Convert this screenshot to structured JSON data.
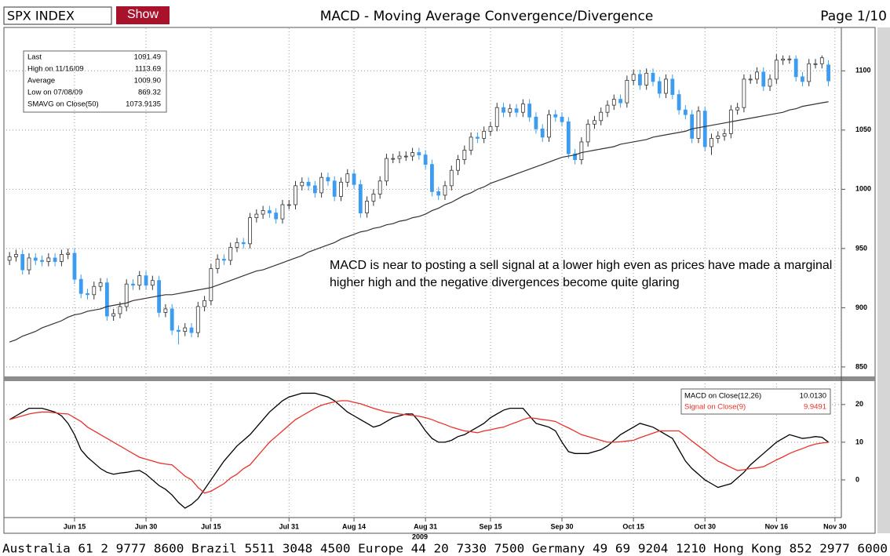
{
  "header": {
    "security": "SPX INDEX",
    "button": "Show",
    "title": "MACD - Moving Average Convergence/Divergence",
    "page": "Page 1/10"
  },
  "stats": [
    {
      "label": "Last",
      "value": "1091.49"
    },
    {
      "label": "High on  11/16/09",
      "value": "1113.69"
    },
    {
      "label": "Average",
      "value": "1009.90"
    },
    {
      "label": "Low on  07/08/09",
      "value": "869.32"
    },
    {
      "value": "1073.9135"
    }
  ],
  "footer": "Australia 61 2 9777 8600 Brazil 5511 3048 4500 Europe 44 20 7330 7500 Germany 49 69 9204 1210 Hong Kong 852 2977 6000",
  "chart_data": [
    {
      "type": "candlestick",
      "up_color": "#ffffff",
      "down_color": "#3d9cf0",
      "annotation": "MACD is near to posting a sell signal at a lower high even as prices have made a marginal higher high and the negative divergences become quite glaring",
      "open": [
        940,
        943,
        945,
        932,
        942,
        940,
        939,
        942,
        939,
        945,
        946,
        924,
        912,
        911,
        918,
        921,
        893,
        895,
        901,
        920,
        919,
        927,
        919,
        923,
        896,
        899,
        881,
        880,
        883,
        879,
        901,
        906,
        933,
        941,
        940,
        951,
        955,
        954,
        976,
        979,
        982,
        980,
        975,
        987,
        987,
        1003,
        1006,
        1003,
        997,
        1010,
        1007,
        994,
        1006,
        1013,
        1004,
        980,
        990,
        996,
        1007,
        1026,
        1026,
        1028,
        1028,
        1031,
        1029,
        1021,
        998,
        995,
        1003,
        1016,
        1025,
        1033,
        1044,
        1043,
        1049,
        1053,
        1069,
        1065,
        1068,
        1065,
        1072,
        1061,
        1051,
        1044,
        1063,
        1061,
        1057,
        1030,
        1025,
        1040,
        1055,
        1058,
        1065,
        1071,
        1076,
        1073,
        1092,
        1097,
        1088,
        1098,
        1091,
        1081,
        1093,
        1080,
        1067,
        1063,
        1043,
        1066,
        1036,
        1043,
        1045,
        1047,
        1067,
        1069,
        1093,
        1093,
        1099,
        1087,
        1093,
        1109,
        1110,
        1110,
        1095,
        1091,
        1106,
        1106,
        1105,
        null
      ],
      "high": [
        947,
        949,
        949,
        946,
        946,
        944,
        946,
        946,
        949,
        950,
        950,
        928,
        916,
        922,
        925,
        925,
        899,
        905,
        924,
        924,
        931,
        931,
        927,
        927,
        903,
        903,
        885,
        887,
        887,
        905,
        910,
        937,
        945,
        945,
        955,
        959,
        959,
        980,
        983,
        986,
        986,
        984,
        991,
        991,
        1007,
        1010,
        1010,
        1007,
        1014,
        1014,
        1011,
        1010,
        1017,
        1017,
        1008,
        994,
        1000,
        1011,
        1030,
        1030,
        1032,
        1032,
        1035,
        1035,
        1033,
        1025,
        1002,
        1007,
        1020,
        1029,
        1037,
        1048,
        1048,
        1053,
        1057,
        1073,
        1073,
        1072,
        1072,
        1076,
        1076,
        1065,
        1055,
        1067,
        1067,
        1065,
        1061,
        1034,
        1044,
        1059,
        1062,
        1069,
        1075,
        1080,
        1080,
        1096,
        1101,
        1101,
        1102,
        1102,
        1095,
        1097,
        1097,
        1084,
        1071,
        1067,
        1070,
        1070,
        1047,
        1049,
        1051,
        1071,
        1073,
        1097,
        1097,
        1103,
        1103,
        1097,
        1114,
        1113,
        1113,
        1113,
        1099,
        1110,
        1110,
        1113,
        1109,
        null
      ],
      "low": [
        936,
        939,
        928,
        928,
        936,
        935,
        935,
        935,
        935,
        941,
        920,
        908,
        907,
        907,
        914,
        889,
        889,
        891,
        897,
        915,
        915,
        915,
        915,
        892,
        892,
        877,
        869,
        876,
        875,
        875,
        897,
        902,
        929,
        936,
        936,
        947,
        950,
        950,
        972,
        975,
        976,
        971,
        971,
        983,
        983,
        999,
        999,
        993,
        993,
        1003,
        990,
        990,
        1002,
        1000,
        976,
        976,
        986,
        992,
        1003,
        1022,
        1022,
        1024,
        1024,
        1025,
        1017,
        994,
        991,
        991,
        999,
        1012,
        1021,
        1029,
        1039,
        1039,
        1045,
        1049,
        1061,
        1061,
        1061,
        1061,
        1057,
        1047,
        1040,
        1040,
        1057,
        1053,
        1026,
        1021,
        1021,
        1036,
        1051,
        1054,
        1061,
        1067,
        1069,
        1069,
        1088,
        1084,
        1084,
        1087,
        1077,
        1077,
        1076,
        1063,
        1059,
        1039,
        1039,
        1032,
        1029,
        1039,
        1041,
        1043,
        1063,
        1065,
        1089,
        1089,
        1083,
        1083,
        1089,
        1105,
        1106,
        1091,
        1087,
        1087,
        1102,
        1102,
        1087,
        null
      ],
      "close": [
        943,
        945,
        932,
        942,
        940,
        939,
        942,
        939,
        945,
        946,
        924,
        912,
        911,
        918,
        921,
        893,
        895,
        901,
        920,
        919,
        927,
        919,
        923,
        896,
        899,
        881,
        880,
        883,
        879,
        901,
        906,
        933,
        941,
        940,
        951,
        955,
        954,
        976,
        979,
        982,
        980,
        975,
        987,
        987,
        1003,
        1006,
        1003,
        997,
        1010,
        1007,
        994,
        1006,
        1013,
        1004,
        980,
        990,
        996,
        1007,
        1026,
        1026,
        1028,
        1028,
        1031,
        1029,
        1021,
        998,
        995,
        1003,
        1016,
        1025,
        1033,
        1044,
        1043,
        1049,
        1053,
        1069,
        1065,
        1068,
        1065,
        1072,
        1061,
        1051,
        1044,
        1063,
        1061,
        1057,
        1030,
        1025,
        1040,
        1055,
        1058,
        1065,
        1071,
        1076,
        1073,
        1092,
        1097,
        1088,
        1098,
        1091,
        1081,
        1093,
        1080,
        1067,
        1063,
        1043,
        1066,
        1036,
        1043,
        1045,
        1047,
        1067,
        1069,
        1093,
        1093,
        1099,
        1087,
        1093,
        1109,
        1110,
        1110,
        1095,
        1091,
        1106,
        1106,
        1111,
        1091.49,
        null
      ],
      "series": [
        {
          "name": "SMAVG on Close(50)",
          "color": "#333333",
          "values": [
            871,
            873,
            876,
            878,
            880,
            883,
            885,
            887,
            889,
            892,
            894,
            895,
            897,
            898,
            899,
            901,
            902,
            903,
            904,
            906,
            907,
            908,
            909,
            910,
            911,
            911,
            912,
            913,
            914,
            915,
            916,
            917,
            919,
            921,
            923,
            925,
            927,
            929,
            931,
            932,
            934,
            936,
            938,
            940,
            942,
            944,
            947,
            949,
            951,
            953,
            955,
            958,
            960,
            962,
            964,
            965,
            967,
            968,
            970,
            971,
            973,
            974,
            976,
            977,
            979,
            982,
            984,
            987,
            989,
            992,
            995,
            997,
            1000,
            1002,
            1005,
            1007,
            1009,
            1011,
            1013,
            1015,
            1017,
            1019,
            1021,
            1023,
            1025,
            1027,
            1028,
            1029,
            1031,
            1032,
            1033,
            1034,
            1035,
            1036,
            1038,
            1039,
            1040,
            1041,
            1042,
            1044,
            1045,
            1046,
            1047,
            1048,
            1049,
            1051,
            1052,
            1053,
            1054,
            1055,
            1056,
            1057,
            1058,
            1059,
            1060,
            1061,
            1062,
            1063,
            1064,
            1065,
            1067,
            1068,
            1070,
            1071,
            1072,
            1073,
            1073.91,
            null
          ]
        }
      ],
      "ylim": [
        842,
        1132
      ],
      "yticks": [
        850,
        900,
        950,
        1000,
        1050,
        1100
      ],
      "grid": true
    },
    {
      "type": "line",
      "categories": [
        null,
        null,
        null,
        null,
        null,
        null,
        null,
        null,
        null,
        null,
        "Jun 15",
        null,
        null,
        null,
        null,
        null,
        null,
        null,
        null,
        null,
        null,
        "Jun 30",
        null,
        null,
        null,
        null,
        null,
        null,
        null,
        null,
        null,
        "Jul 15",
        null,
        null,
        null,
        null,
        null,
        null,
        null,
        null,
        null,
        null,
        null,
        "Jul 31",
        null,
        null,
        null,
        null,
        null,
        null,
        null,
        null,
        null,
        "Aug 14",
        null,
        null,
        null,
        null,
        null,
        null,
        null,
        null,
        null,
        null,
        "Aug 31",
        null,
        null,
        null,
        null,
        null,
        null,
        null,
        null,
        null,
        "Sep 15",
        null,
        null,
        null,
        null,
        null,
        null,
        null,
        null,
        null,
        null,
        "Sep 30",
        null,
        null,
        null,
        null,
        null,
        null,
        null,
        null,
        null,
        null,
        "Oct 15",
        null,
        null,
        null,
        null,
        null,
        null,
        null,
        null,
        null,
        null,
        "Oct 30",
        null,
        null,
        null,
        null,
        null,
        null,
        null,
        null,
        null,
        null,
        "Nov 16",
        null,
        null,
        null,
        null,
        null,
        null,
        null,
        null,
        "Nov 30"
      ],
      "xlabel": "2009",
      "series": [
        {
          "name": "MACD on Close(12,26)",
          "color": "#000000",
          "last_label": "10.0130",
          "values": [
            16,
            17,
            18,
            19,
            19,
            19,
            18.5,
            18,
            17,
            15,
            12,
            8,
            6,
            4.5,
            3,
            2,
            1.5,
            1.8,
            2,
            2.3,
            2.5,
            1.5,
            0,
            -1.5,
            -2.5,
            -4,
            -6,
            -7.5,
            -6.5,
            -5,
            -2.5,
            0,
            2.5,
            5,
            7,
            9,
            10.5,
            12,
            14,
            16,
            18,
            19.5,
            21,
            22,
            22.5,
            23,
            23,
            23,
            22.5,
            22,
            21,
            19.5,
            18,
            17,
            16,
            15,
            14,
            14.5,
            15.5,
            16.5,
            17,
            17.5,
            17.5,
            15.5,
            13,
            11,
            10,
            10,
            10.5,
            11.5,
            12,
            13,
            14,
            15,
            16.5,
            17.5,
            18.5,
            19,
            19,
            19,
            17,
            15,
            14.5,
            14,
            13,
            10,
            7.5,
            7,
            7,
            7,
            7.5,
            8,
            9,
            10.5,
            12,
            13,
            14,
            15,
            14.5,
            14,
            13,
            12,
            11,
            8,
            5,
            3,
            1.5,
            0,
            -1,
            -2,
            -1.5,
            -1,
            0.5,
            2,
            4,
            5.5,
            7,
            8.5,
            10,
            11,
            12,
            11.5,
            11,
            11.2,
            11.5,
            11.3,
            10.013,
            null
          ]
        },
        {
          "name": "Signal on Close(9)",
          "color": "#e8312a",
          "last_label": "9.9491",
          "values": [
            16,
            16.5,
            17,
            17.5,
            17.8,
            18,
            18,
            17.8,
            17.6,
            17.5,
            16.5,
            15.5,
            14,
            13,
            12,
            11,
            10,
            9,
            8,
            7,
            6,
            5.5,
            5,
            4.5,
            4.2,
            4,
            2.5,
            1,
            0,
            -2,
            -3.5,
            -3,
            -2,
            -1,
            0.5,
            1.5,
            3,
            4,
            6,
            8,
            10,
            11.5,
            13,
            14.5,
            16,
            17,
            18,
            19,
            19.8,
            20.3,
            20.7,
            21,
            21,
            20.6,
            20.2,
            19.6,
            19,
            18.5,
            18,
            17.8,
            17.5,
            17.3,
            17.1,
            16.9,
            16.5,
            16,
            15.3,
            14.7,
            14,
            13.5,
            13,
            12.8,
            12.5,
            13,
            13.3,
            13.7,
            14,
            14.7,
            15.3,
            16,
            16.5,
            16.3,
            16,
            15.8,
            15.5,
            14.6,
            13.8,
            12.9,
            12,
            11.5,
            11,
            10.5,
            10,
            10,
            10.1,
            10.3,
            10.5,
            11.2,
            11.8,
            12.4,
            13,
            13,
            13,
            13,
            11.7,
            10.3,
            9,
            7.7,
            6.3,
            5,
            4.2,
            3.3,
            2.5,
            2.7,
            3,
            3.2,
            3.5,
            4.4,
            5.3,
            6.1,
            7,
            7.7,
            8.3,
            9,
            9.5,
            9.8,
            9.9491,
            null
          ]
        }
      ],
      "ylim": [
        -10,
        26
      ],
      "yticks": [
        0,
        10,
        20
      ],
      "grid": true,
      "legend": "upper right"
    }
  ]
}
